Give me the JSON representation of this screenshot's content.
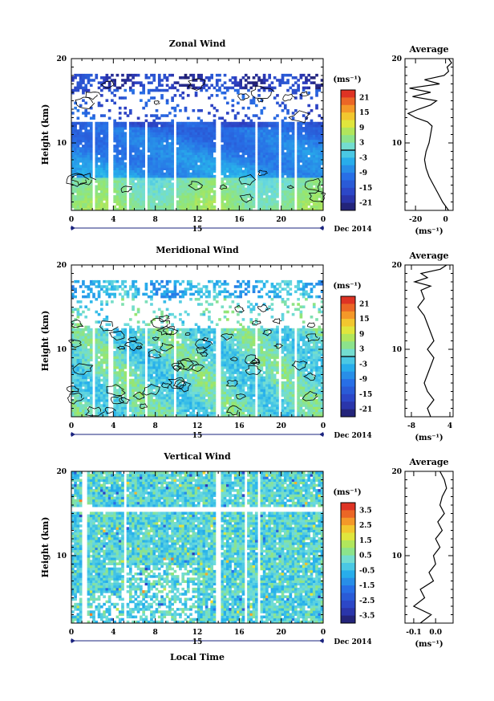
{
  "figure": {
    "xlabel": "Local Time",
    "date_label": "Dec 2014",
    "day_label": "15"
  },
  "chart_data": [
    {
      "type": "heatmap",
      "title": "Zonal Wind",
      "ylabel": "Height (km)",
      "xlabel": "Local Time",
      "xlim": [
        0,
        24
      ],
      "ylim": [
        2,
        20
      ],
      "xticks": [
        "0",
        "4",
        "8",
        "12",
        "16",
        "20",
        "0"
      ],
      "yticks": [
        "10",
        "20"
      ],
      "colorbar": {
        "unit": "(ms⁻¹)",
        "ticks": [
          "21",
          "15",
          "9",
          "3",
          "-3",
          "-9",
          "-15",
          "-21"
        ],
        "range": [
          -24,
          24
        ],
        "zero_contour": true
      },
      "contours": "0 m/s contour overlaid",
      "description_values": {
        "upper_level_wind_ms": -18,
        "mid_level_wind_ms": -6,
        "low_level_wind_ms": 2
      },
      "average_profile": {
        "title": "Average",
        "xlabel": "(ms⁻¹)",
        "xticks": [
          "-20",
          "0"
        ],
        "yticks": [
          "10",
          "20"
        ],
        "xlim": [
          -27,
          5
        ],
        "height_km": [
          2,
          3,
          4,
          5,
          6,
          7,
          8,
          9,
          10,
          11,
          12,
          12.5,
          13,
          13.5,
          14,
          14.5,
          15,
          15.5,
          16,
          16.5,
          17,
          17.5,
          18,
          18.5,
          19,
          19.5,
          20
        ],
        "wind_ms": [
          2,
          -2,
          -5,
          -8,
          -11,
          -13,
          -14,
          -13,
          -11,
          -10,
          -9,
          -12,
          -20,
          -25,
          -18,
          -10,
          -6,
          -22,
          -10,
          -24,
          -4,
          -14,
          -1,
          2,
          1,
          4,
          2
        ]
      }
    },
    {
      "type": "heatmap",
      "title": "Meridional Wind",
      "ylabel": "Height (km)",
      "xlabel": "Local Time",
      "xlim": [
        0,
        24
      ],
      "ylim": [
        2,
        20
      ],
      "xticks": [
        "0",
        "4",
        "8",
        "12",
        "16",
        "20",
        "0"
      ],
      "yticks": [
        "10",
        "20"
      ],
      "colorbar": {
        "unit": "(ms⁻¹)",
        "ticks": [
          "21",
          "15",
          "9",
          "3",
          "-3",
          "-9",
          "-15",
          "-21"
        ],
        "range": [
          -24,
          24
        ],
        "zero_contour": true
      },
      "contours": "0 m/s contour overlaid",
      "description_values": {
        "upper_level_wind_ms": -4,
        "mid_level_wind_ms": 1,
        "low_level_wind_ms": -1
      },
      "average_profile": {
        "title": "Average",
        "xlabel": "(ms⁻¹)",
        "xticks": [
          "-8",
          "4"
        ],
        "yticks": [
          "10",
          "20"
        ],
        "xlim": [
          -10,
          5
        ],
        "height_km": [
          2,
          3,
          4,
          5,
          6,
          7,
          8,
          9,
          10,
          11,
          12,
          13,
          14,
          15,
          16,
          17,
          17.5,
          18,
          18.5,
          19,
          19.5,
          20
        ],
        "wind_ms": [
          -2,
          -3,
          -1,
          -3,
          -4,
          -3,
          -2,
          -1,
          -3,
          -1,
          -2,
          -3,
          -4,
          -6,
          -4,
          -5,
          -2,
          -7,
          -3,
          -5,
          1,
          3
        ]
      }
    },
    {
      "type": "heatmap",
      "title": "Vertical Wind",
      "ylabel": "Height (km)",
      "xlabel": "Local Time",
      "xlim": [
        0,
        24
      ],
      "ylim": [
        2,
        20
      ],
      "xticks": [
        "0",
        "4",
        "8",
        "12",
        "16",
        "20",
        "0"
      ],
      "yticks": [
        "10",
        "20"
      ],
      "colorbar": {
        "unit": "(ms⁻¹)",
        "ticks": [
          "3.5",
          "2.5",
          "1.5",
          "0.5",
          "-0.5",
          "-1.5",
          "-2.5",
          "-3.5"
        ],
        "range": [
          -4,
          4
        ],
        "zero_contour": false
      },
      "description_values": {
        "typical_wind_ms": 0
      },
      "average_profile": {
        "title": "Average",
        "xlabel": "(ms⁻¹)",
        "xticks": [
          "-0.1",
          "0.0"
        ],
        "yticks": [
          "10",
          "20"
        ],
        "xlim": [
          -0.14,
          0.08
        ],
        "height_km": [
          2,
          3,
          4,
          5,
          6,
          7,
          8,
          9,
          10,
          11,
          12,
          13,
          14,
          15,
          16,
          17,
          18,
          19,
          20
        ],
        "wind_ms": [
          -0.07,
          -0.02,
          -0.1,
          -0.05,
          -0.07,
          -0.01,
          -0.03,
          0.0,
          -0.01,
          0.02,
          0.0,
          0.03,
          0.01,
          0.04,
          0.02,
          0.03,
          0.05,
          0.04,
          0.02
        ]
      }
    }
  ]
}
